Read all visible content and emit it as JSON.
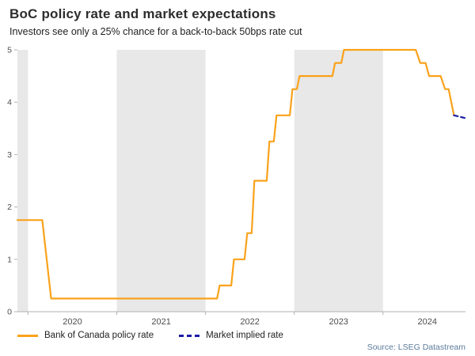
{
  "header": {
    "title": "BoC policy rate and market expectations",
    "subtitle": "Investors see only a 25% chance for a back-to-back 50bps rate cut"
  },
  "legend": {
    "items": [
      {
        "label": "Bank of Canada policy rate",
        "color": "#FAA21B",
        "style": "solid"
      },
      {
        "label": "Market implied rate",
        "color": "#1b1ba6",
        "style": "dashed"
      }
    ]
  },
  "footer": {
    "source": "Source: LSEG Datastream"
  },
  "chart_data": {
    "type": "line",
    "title": "BoC policy rate and market expectations",
    "xlabel": "",
    "ylabel": "",
    "x_domain": [
      2019.88,
      2024.93
    ],
    "y_domain": [
      0,
      5
    ],
    "y_ticks": [
      0,
      1,
      2,
      3,
      4,
      5
    ],
    "x_ticks": [
      {
        "label": "2020",
        "x": 2020.5
      },
      {
        "label": "2021",
        "x": 2021.5
      },
      {
        "label": "2022",
        "x": 2022.5
      },
      {
        "label": "2023",
        "x": 2023.5
      },
      {
        "label": "2024",
        "x": 2024.5
      }
    ],
    "grid": false,
    "legend_position": "bottom",
    "shaded_bands": {
      "color": "#e8e8e8",
      "ranges": [
        [
          2019.88,
          2020.0
        ],
        [
          2021.0,
          2022.0
        ],
        [
          2023.0,
          2024.0
        ]
      ]
    },
    "axis_color": "#b0b0b0",
    "tick_text_color": "#4d4d4d",
    "series": [
      {
        "name": "Bank of Canada policy rate",
        "color": "#FAA21B",
        "style": "solid",
        "points": [
          [
            2019.88,
            1.75
          ],
          [
            2020.16,
            1.75
          ],
          [
            2020.26,
            0.25
          ],
          [
            2022.13,
            0.25
          ],
          [
            2022.16,
            0.5
          ],
          [
            2022.29,
            0.5
          ],
          [
            2022.32,
            1.0
          ],
          [
            2022.44,
            1.0
          ],
          [
            2022.47,
            1.5
          ],
          [
            2022.52,
            1.5
          ],
          [
            2022.55,
            2.5
          ],
          [
            2022.69,
            2.5
          ],
          [
            2022.72,
            3.25
          ],
          [
            2022.77,
            3.25
          ],
          [
            2022.8,
            3.75
          ],
          [
            2022.95,
            3.75
          ],
          [
            2022.98,
            4.25
          ],
          [
            2023.03,
            4.25
          ],
          [
            2023.06,
            4.5
          ],
          [
            2023.43,
            4.5
          ],
          [
            2023.46,
            4.75
          ],
          [
            2023.53,
            4.75
          ],
          [
            2023.56,
            5.0
          ],
          [
            2024.37,
            5.0
          ],
          [
            2024.42,
            4.75
          ],
          [
            2024.48,
            4.75
          ],
          [
            2024.52,
            4.5
          ],
          [
            2024.65,
            4.5
          ],
          [
            2024.7,
            4.25
          ],
          [
            2024.74,
            4.25
          ],
          [
            2024.8,
            3.75
          ]
        ]
      },
      {
        "name": "Market implied rate",
        "color": "#1b1ba6",
        "style": "dashed",
        "points": [
          [
            2024.8,
            3.75
          ],
          [
            2024.92,
            3.7
          ]
        ]
      }
    ]
  }
}
